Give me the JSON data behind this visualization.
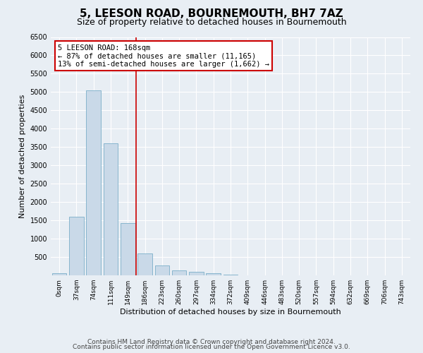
{
  "title": "5, LEESON ROAD, BOURNEMOUTH, BH7 7AZ",
  "subtitle": "Size of property relative to detached houses in Bournemouth",
  "xlabel": "Distribution of detached houses by size in Bournemouth",
  "ylabel": "Number of detached properties",
  "footer_line1": "Contains HM Land Registry data © Crown copyright and database right 2024.",
  "footer_line2": "Contains public sector information licensed under the Open Government Licence v3.0.",
  "categories": [
    "0sqm",
    "37sqm",
    "74sqm",
    "111sqm",
    "149sqm",
    "186sqm",
    "223sqm",
    "260sqm",
    "297sqm",
    "334sqm",
    "372sqm",
    "409sqm",
    "446sqm",
    "483sqm",
    "520sqm",
    "557sqm",
    "594sqm",
    "632sqm",
    "669sqm",
    "706sqm",
    "743sqm"
  ],
  "bar_values": [
    50,
    1600,
    5050,
    3600,
    1420,
    600,
    270,
    130,
    90,
    55,
    15,
    5,
    2,
    1,
    0,
    0,
    0,
    0,
    0,
    0,
    0
  ],
  "bar_color": "#c9d9e8",
  "bar_edge_color": "#7aaec8",
  "red_line_bin_index": 5,
  "red_line_label_title": "5 LEESON ROAD: 168sqm",
  "red_line_label_line1": "← 87% of detached houses are smaller (11,165)",
  "red_line_label_line2": "13% of semi-detached houses are larger (1,662) →",
  "annotation_box_color": "#ffffff",
  "annotation_box_edge": "#cc0000",
  "ylim": [
    0,
    6500
  ],
  "yticks": [
    0,
    500,
    1000,
    1500,
    2000,
    2500,
    3000,
    3500,
    4000,
    4500,
    5000,
    5500,
    6000,
    6500
  ],
  "background_color": "#e8eef4",
  "plot_bg_color": "#e8eef4",
  "grid_color": "#ffffff",
  "title_fontsize": 11,
  "subtitle_fontsize": 9,
  "axis_label_fontsize": 8,
  "tick_fontsize": 7,
  "footer_fontsize": 6.5,
  "annotation_fontsize": 7.5
}
